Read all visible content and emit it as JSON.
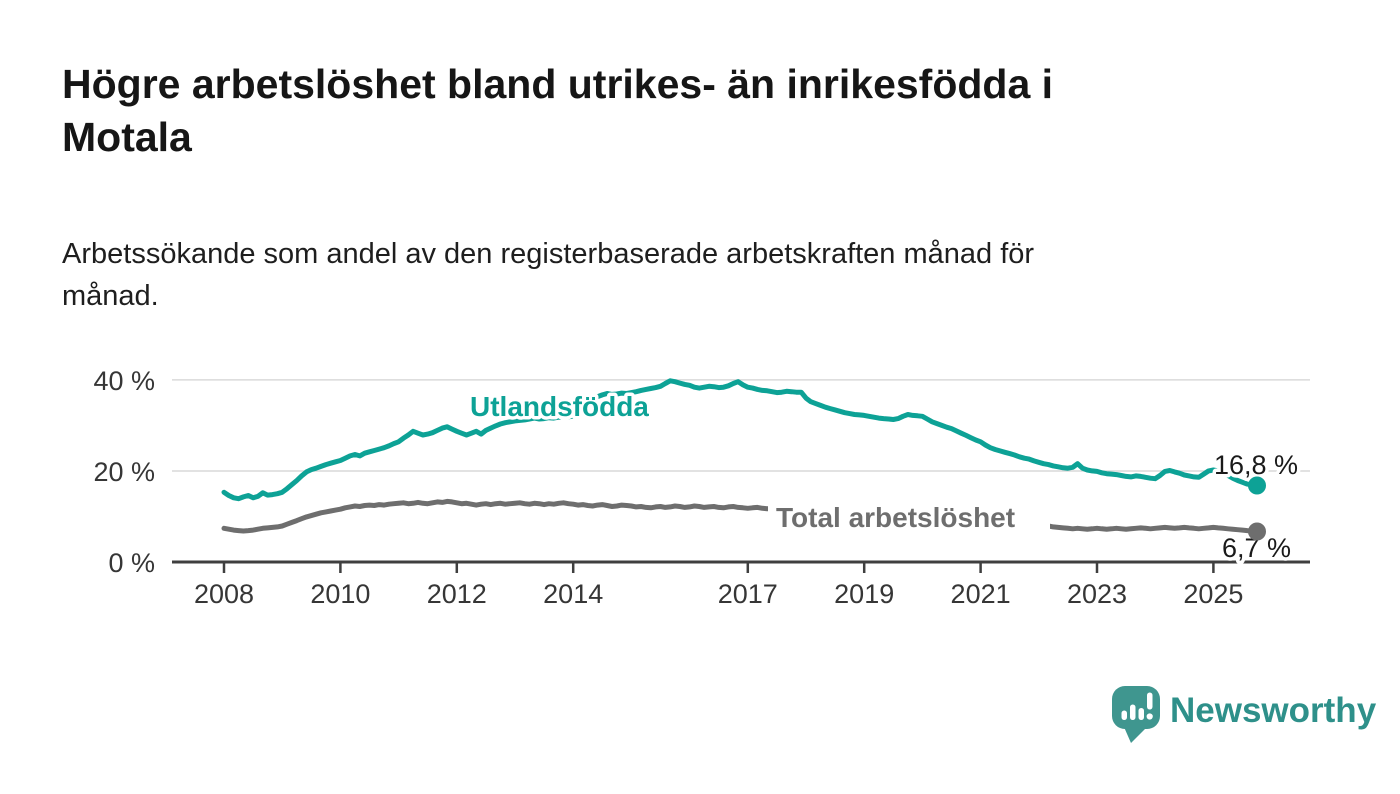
{
  "header": {
    "title": "Högre arbetslöshet bland utrikes- än inrikesfödda i Motala",
    "title_lines": [
      "Högre arbetslöshet bland utrikes- än inrikesfödda i",
      "Motala"
    ],
    "subtitle": "Arbetssökande som andel av den registerbaserade arbetskraften månad för månad.",
    "subtitle_lines": [
      "Arbetssökande som andel av den registerbaserade arbetskraften månad för",
      "månad."
    ]
  },
  "footer": {
    "brand": "Newsworthy",
    "logo_icon": "newsworthy-speech-bubble-bar-chart-icon"
  },
  "colors": {
    "foreign_born_line": "#0da296",
    "total_line": "#6e6e6e",
    "grid": "#d9d9d9",
    "axis": "#3f3f3f",
    "axis_text": "#363636",
    "annotation_text": "#1a1a1a",
    "logo_bubble": "#3f968f",
    "logo_text": "#2e908a",
    "background": "#ffffff"
  },
  "chart_data": {
    "type": "line",
    "x_unit": "month",
    "x_start_year": 2008,
    "x_end_label_year": 2025.75,
    "x_ticks": [
      "2008",
      "2010",
      "2012",
      "2014",
      "2017",
      "2019",
      "2021",
      "2023",
      "2025"
    ],
    "x_tick_years": [
      2008,
      2010,
      2012,
      2014,
      2017,
      2019,
      2021,
      2023,
      2025
    ],
    "y_ticks": [
      {
        "value": 0,
        "label": "0 %"
      },
      {
        "value": 20,
        "label": "20 %"
      },
      {
        "value": 40,
        "label": "40 %"
      }
    ],
    "ylim": [
      0,
      43
    ],
    "grid": "horizontal-only",
    "legend_position": "inline-labels",
    "series": [
      {
        "name": "Utlandsfödda",
        "color": "#0da296",
        "end_label": "16,8 %",
        "end_value": 16.8,
        "values": [
          15.3,
          14.6,
          14.1,
          13.9,
          14.3,
          14.6,
          14.1,
          14.4,
          15.2,
          14.7,
          14.8,
          15.0,
          15.3,
          16.1,
          17.0,
          17.9,
          18.9,
          19.8,
          20.3,
          20.6,
          21.0,
          21.4,
          21.7,
          22.0,
          22.3,
          22.8,
          23.3,
          23.6,
          23.3,
          23.9,
          24.2,
          24.5,
          24.8,
          25.1,
          25.5,
          26.0,
          26.4,
          27.2,
          27.9,
          28.7,
          28.3,
          27.9,
          28.1,
          28.4,
          28.9,
          29.4,
          29.7,
          29.2,
          28.7,
          28.3,
          27.9,
          28.3,
          28.7,
          28.1,
          28.9,
          29.4,
          29.9,
          30.3,
          30.6,
          30.8,
          31.0,
          31.1,
          31.2,
          31.4,
          31.6,
          31.4,
          31.5,
          31.7,
          31.6,
          31.8,
          31.9,
          31.9,
          32.0,
          32.3,
          32.9,
          34.2,
          35.5,
          36.3,
          36.7,
          37.0,
          36.8,
          36.9,
          37.1,
          37.0,
          37.2,
          37.4,
          37.7,
          37.9,
          38.1,
          38.3,
          38.6,
          39.2,
          39.8,
          39.6,
          39.3,
          39.0,
          38.8,
          38.4,
          38.2,
          38.4,
          38.6,
          38.5,
          38.3,
          38.4,
          38.7,
          39.2,
          39.6,
          38.9,
          38.4,
          38.2,
          37.9,
          37.7,
          37.6,
          37.4,
          37.2,
          37.3,
          37.5,
          37.4,
          37.3,
          37.3,
          36.0,
          35.2,
          34.8,
          34.4,
          34.0,
          33.7,
          33.4,
          33.1,
          32.8,
          32.6,
          32.4,
          32.3,
          32.2,
          32.0,
          31.8,
          31.6,
          31.5,
          31.4,
          31.3,
          31.5,
          32.0,
          32.4,
          32.2,
          32.1,
          32.0,
          31.4,
          30.8,
          30.4,
          30.0,
          29.6,
          29.3,
          28.8,
          28.3,
          27.8,
          27.3,
          26.8,
          26.4,
          25.7,
          25.1,
          24.7,
          24.4,
          24.1,
          23.8,
          23.5,
          23.1,
          22.8,
          22.6,
          22.2,
          21.9,
          21.6,
          21.4,
          21.1,
          20.9,
          20.7,
          20.6,
          20.8,
          21.6,
          20.6,
          20.2,
          20.0,
          19.9,
          19.6,
          19.4,
          19.3,
          19.2,
          19.0,
          18.8,
          18.7,
          18.9,
          18.8,
          18.6,
          18.4,
          18.3,
          19.0,
          19.9,
          20.1,
          19.8,
          19.5,
          19.1,
          18.9,
          18.7,
          18.6,
          19.3,
          20.0,
          20.2,
          20.0,
          19.5,
          19.0,
          18.4,
          17.9,
          17.5,
          17.1,
          16.9,
          16.8
        ]
      },
      {
        "name": "Total arbetslöshet",
        "color": "#6e6e6e",
        "end_label": "6,7 %",
        "end_value": 6.7,
        "values": [
          7.4,
          7.2,
          7.0,
          6.9,
          6.8,
          6.9,
          7.0,
          7.2,
          7.4,
          7.5,
          7.6,
          7.7,
          7.9,
          8.3,
          8.7,
          9.1,
          9.5,
          9.9,
          10.2,
          10.5,
          10.8,
          11.0,
          11.2,
          11.4,
          11.6,
          11.9,
          12.1,
          12.3,
          12.2,
          12.4,
          12.5,
          12.4,
          12.6,
          12.5,
          12.7,
          12.8,
          12.9,
          13.0,
          12.8,
          12.9,
          13.1,
          12.9,
          12.8,
          13.0,
          13.2,
          13.1,
          13.3,
          13.2,
          13.0,
          12.8,
          12.9,
          12.7,
          12.5,
          12.7,
          12.8,
          12.6,
          12.8,
          12.9,
          12.7,
          12.8,
          12.9,
          13.0,
          12.8,
          12.7,
          12.9,
          12.8,
          12.6,
          12.8,
          12.7,
          12.9,
          13.0,
          12.8,
          12.7,
          12.5,
          12.6,
          12.4,
          12.3,
          12.5,
          12.6,
          12.4,
          12.2,
          12.3,
          12.5,
          12.4,
          12.3,
          12.1,
          12.2,
          12.0,
          11.9,
          12.1,
          12.2,
          12.0,
          12.1,
          12.3,
          12.2,
          12.0,
          12.1,
          12.3,
          12.2,
          12.0,
          12.1,
          12.2,
          12.0,
          11.9,
          12.1,
          12.2,
          12.0,
          11.9,
          11.8,
          11.9,
          12.0,
          11.8,
          11.7,
          11.8,
          11.6,
          11.5,
          11.7,
          11.6,
          11.4,
          11.3,
          11.2,
          11.0,
          10.9,
          10.8,
          10.7,
          10.8,
          10.6,
          10.5,
          10.6,
          10.4,
          10.5,
          10.6,
          10.7,
          10.8,
          10.6,
          10.7,
          10.9,
          10.8,
          11.0,
          11.1,
          11.0,
          11.2,
          11.1,
          11.3,
          11.4,
          11.6,
          11.9,
          12.3,
          12.5,
          12.4,
          12.2,
          12.0,
          11.8,
          11.6,
          11.4,
          11.2,
          11.0,
          10.7,
          10.4,
          10.1,
          9.9,
          9.7,
          9.5,
          9.2,
          9.0,
          8.8,
          8.6,
          8.4,
          8.2,
          8.0,
          7.9,
          7.7,
          7.6,
          7.5,
          7.4,
          7.3,
          7.4,
          7.3,
          7.2,
          7.3,
          7.4,
          7.3,
          7.2,
          7.3,
          7.4,
          7.3,
          7.2,
          7.3,
          7.4,
          7.5,
          7.4,
          7.3,
          7.4,
          7.5,
          7.6,
          7.5,
          7.4,
          7.5,
          7.6,
          7.5,
          7.4,
          7.3,
          7.4,
          7.5,
          7.6,
          7.5,
          7.4,
          7.3,
          7.2,
          7.1,
          7.0,
          6.9,
          6.8,
          6.7
        ]
      }
    ]
  }
}
